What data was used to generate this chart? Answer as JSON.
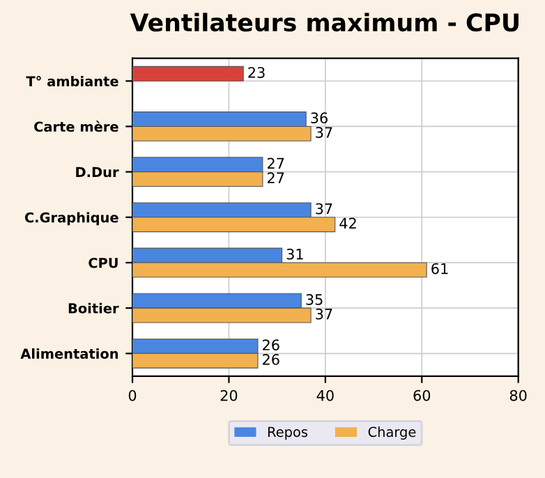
{
  "chart_data": {
    "type": "bar",
    "orientation": "horizontal",
    "title": "Ventilateurs maximum - CPU",
    "categories": [
      "T° ambiante",
      "Carte mère",
      "D.Dur",
      "C.Graphique",
      "CPU",
      "Boitier",
      "Alimentation"
    ],
    "series": [
      {
        "name": "Repos",
        "color": "#4a86e0",
        "colors": [
          "#d9423a",
          "#4a86e0",
          "#4a86e0",
          "#4a86e0",
          "#4a86e0",
          "#4a86e0",
          "#4a86e0"
        ],
        "values": [
          23,
          36,
          27,
          37,
          31,
          35,
          26
        ]
      },
      {
        "name": "Charge",
        "color": "#f2b04e",
        "values": [
          null,
          37,
          27,
          42,
          61,
          37,
          26
        ]
      }
    ],
    "xlim": [
      0,
      80
    ],
    "xticks": [
      0,
      20,
      40,
      60,
      80
    ],
    "grid": true,
    "legend": "bottom",
    "data_labels": true
  }
}
